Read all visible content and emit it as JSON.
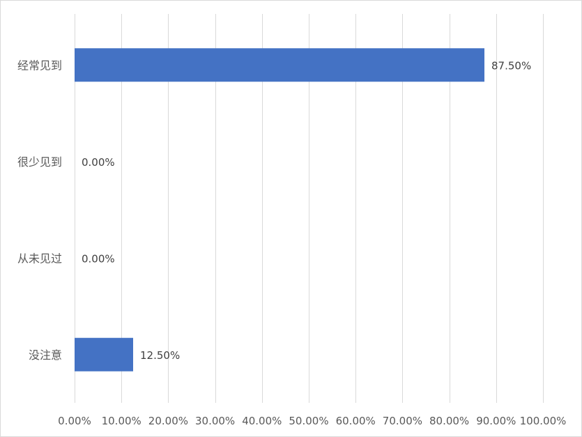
{
  "chart_data": {
    "type": "bar",
    "orientation": "horizontal",
    "title": "",
    "xlabel": "",
    "ylabel": "",
    "categories": [
      "经常见到",
      "很少见到",
      "从未见过",
      "没注意"
    ],
    "values": [
      87.5,
      0,
      0,
      12.5
    ],
    "data_labels": [
      "87.50%",
      "0.00%",
      "0.00%",
      "12.50%"
    ],
    "xlim": [
      0,
      100
    ],
    "x_ticks": [
      0,
      10,
      20,
      30,
      40,
      50,
      60,
      70,
      80,
      90,
      100
    ],
    "x_tick_labels": [
      "0.00%",
      "10.00%",
      "20.00%",
      "30.00%",
      "40.00%",
      "50.00%",
      "60.00%",
      "70.00%",
      "80.00%",
      "90.00%",
      "100.00%"
    ],
    "grid": true,
    "legend": "none",
    "bar_color": "#4472C4",
    "grid_color": "#D9D9D9"
  }
}
